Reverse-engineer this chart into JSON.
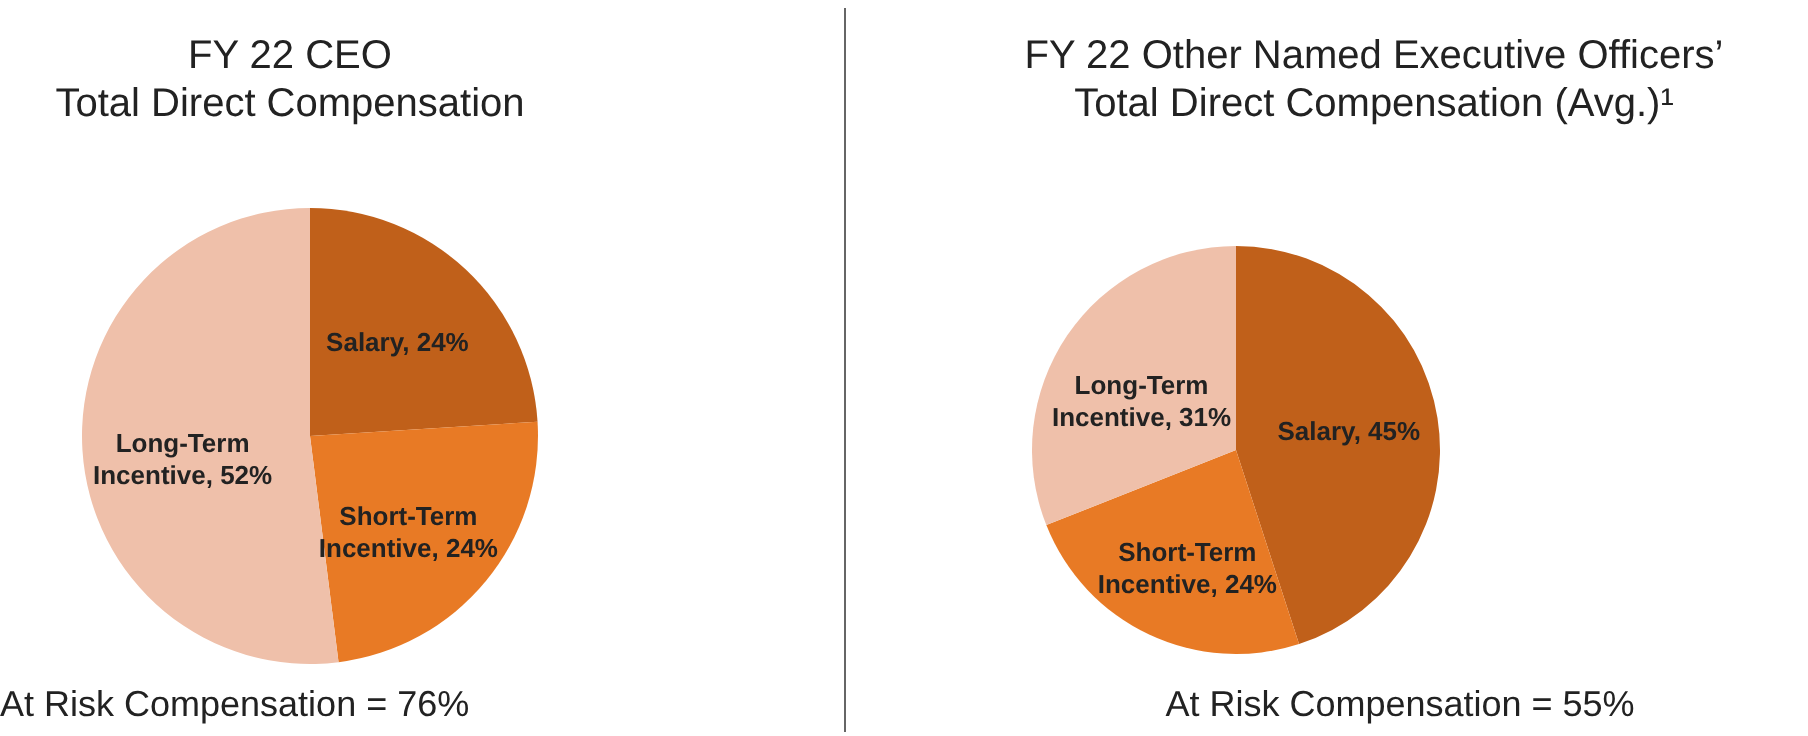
{
  "chart_data": [
    {
      "type": "pie",
      "title": "FY 22 CEO\nTotal Direct Compensation",
      "categories": [
        "Salary, 24%",
        "Short-Term Incentive, 24%",
        "Long-Term Incentive, 52%"
      ],
      "values": [
        24,
        24,
        52
      ],
      "colors": [
        "#c0601a",
        "#e87a25",
        "#efc0aa"
      ],
      "annotations": [
        "At Risk Compensation = 76%"
      ]
    },
    {
      "type": "pie",
      "title": "FY 22 Other Named Executive Officers’\nTotal Direct Compensation (Avg.)¹",
      "categories": [
        "Salary, 45%",
        "Short-Term Incentive, 24%",
        "Long-Term Incentive, 31%"
      ],
      "values": [
        45,
        24,
        31
      ],
      "colors": [
        "#c0601a",
        "#e87a25",
        "#efc0aa"
      ],
      "annotations": [
        "At Risk Compensation = 55%"
      ]
    }
  ]
}
